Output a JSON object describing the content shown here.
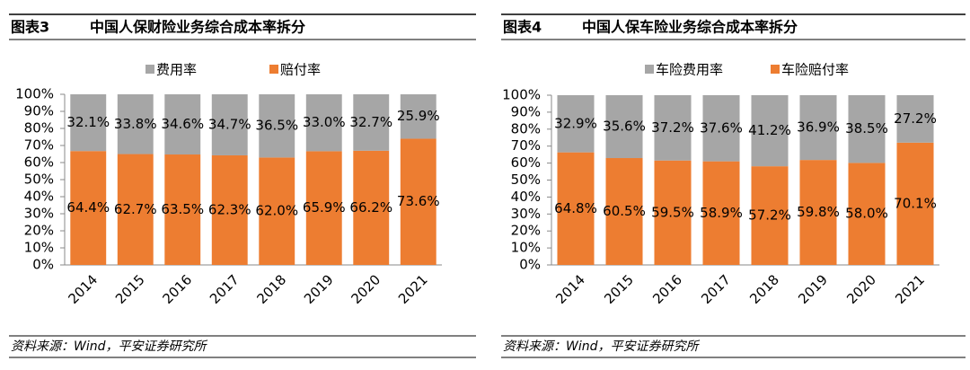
{
  "chart_data": [
    {
      "type": "bar",
      "stacking": "percent",
      "figure_label": "图表3",
      "title": "中国人保财险业务综合成本率拆分",
      "source": "资料来源：Wind，平安证券研究所",
      "categories": [
        "2014",
        "2015",
        "2016",
        "2017",
        "2018",
        "2019",
        "2020",
        "2021"
      ],
      "series": [
        {
          "name": "赔付率",
          "color": "#ed7d31",
          "values": [
            64.4,
            62.7,
            63.5,
            62.3,
            62.0,
            65.9,
            66.2,
            73.6
          ],
          "value_labels": [
            "64.4%",
            "62.7%",
            "63.5%",
            "62.3%",
            "62.0%",
            "65.9%",
            "66.2%",
            "73.6%"
          ]
        },
        {
          "name": "费用率",
          "color": "#a6a6a6",
          "values": [
            32.1,
            33.8,
            34.6,
            34.7,
            36.5,
            33.0,
            32.7,
            25.9
          ],
          "value_labels": [
            "32.1%",
            "33.8%",
            "34.6%",
            "34.7%",
            "36.5%",
            "33.0%",
            "32.7%",
            "25.9%"
          ]
        }
      ],
      "ylim": [
        0,
        100
      ],
      "yticks": [
        {
          "value": 0,
          "label": "0%"
        },
        {
          "value": 10,
          "label": "10%"
        },
        {
          "value": 20,
          "label": "20%"
        },
        {
          "value": 30,
          "label": "30%"
        },
        {
          "value": 40,
          "label": "40%"
        },
        {
          "value": 50,
          "label": "50%"
        },
        {
          "value": 60,
          "label": "60%"
        },
        {
          "value": 70,
          "label": "70%"
        },
        {
          "value": 80,
          "label": "80%"
        },
        {
          "value": 90,
          "label": "90%"
        },
        {
          "value": 100,
          "label": "100%"
        }
      ],
      "legend": "top"
    },
    {
      "type": "bar",
      "stacking": "percent",
      "figure_label": "图表4",
      "title": "中国人保车险业务综合成本率拆分",
      "source": "资料来源：Wind，平安证券研究所",
      "categories": [
        "2014",
        "2015",
        "2016",
        "2017",
        "2018",
        "2019",
        "2020",
        "2021"
      ],
      "series": [
        {
          "name": "车险赔付率",
          "color": "#ed7d31",
          "values": [
            64.8,
            60.5,
            59.5,
            58.9,
            57.2,
            59.8,
            58.0,
            70.1
          ],
          "value_labels": [
            "64.8%",
            "60.5%",
            "59.5%",
            "58.9%",
            "57.2%",
            "59.8%",
            "58.0%",
            "70.1%"
          ]
        },
        {
          "name": "车险费用率",
          "color": "#a6a6a6",
          "values": [
            32.9,
            35.6,
            37.2,
            37.6,
            41.2,
            36.9,
            38.5,
            27.2
          ],
          "value_labels": [
            "32.9%",
            "35.6%",
            "37.2%",
            "37.6%",
            "41.2%",
            "36.9%",
            "38.5%",
            "27.2%"
          ]
        }
      ],
      "ylim": [
        0,
        100
      ],
      "yticks": [
        {
          "value": 0,
          "label": "0%"
        },
        {
          "value": 10,
          "label": "10%"
        },
        {
          "value": 20,
          "label": "20%"
        },
        {
          "value": 30,
          "label": "30%"
        },
        {
          "value": 40,
          "label": "40%"
        },
        {
          "value": 50,
          "label": "50%"
        },
        {
          "value": 60,
          "label": "60%"
        },
        {
          "value": 70,
          "label": "70%"
        },
        {
          "value": 80,
          "label": "80%"
        },
        {
          "value": 90,
          "label": "90%"
        },
        {
          "value": 100,
          "label": "100%"
        }
      ],
      "legend": "top"
    }
  ]
}
